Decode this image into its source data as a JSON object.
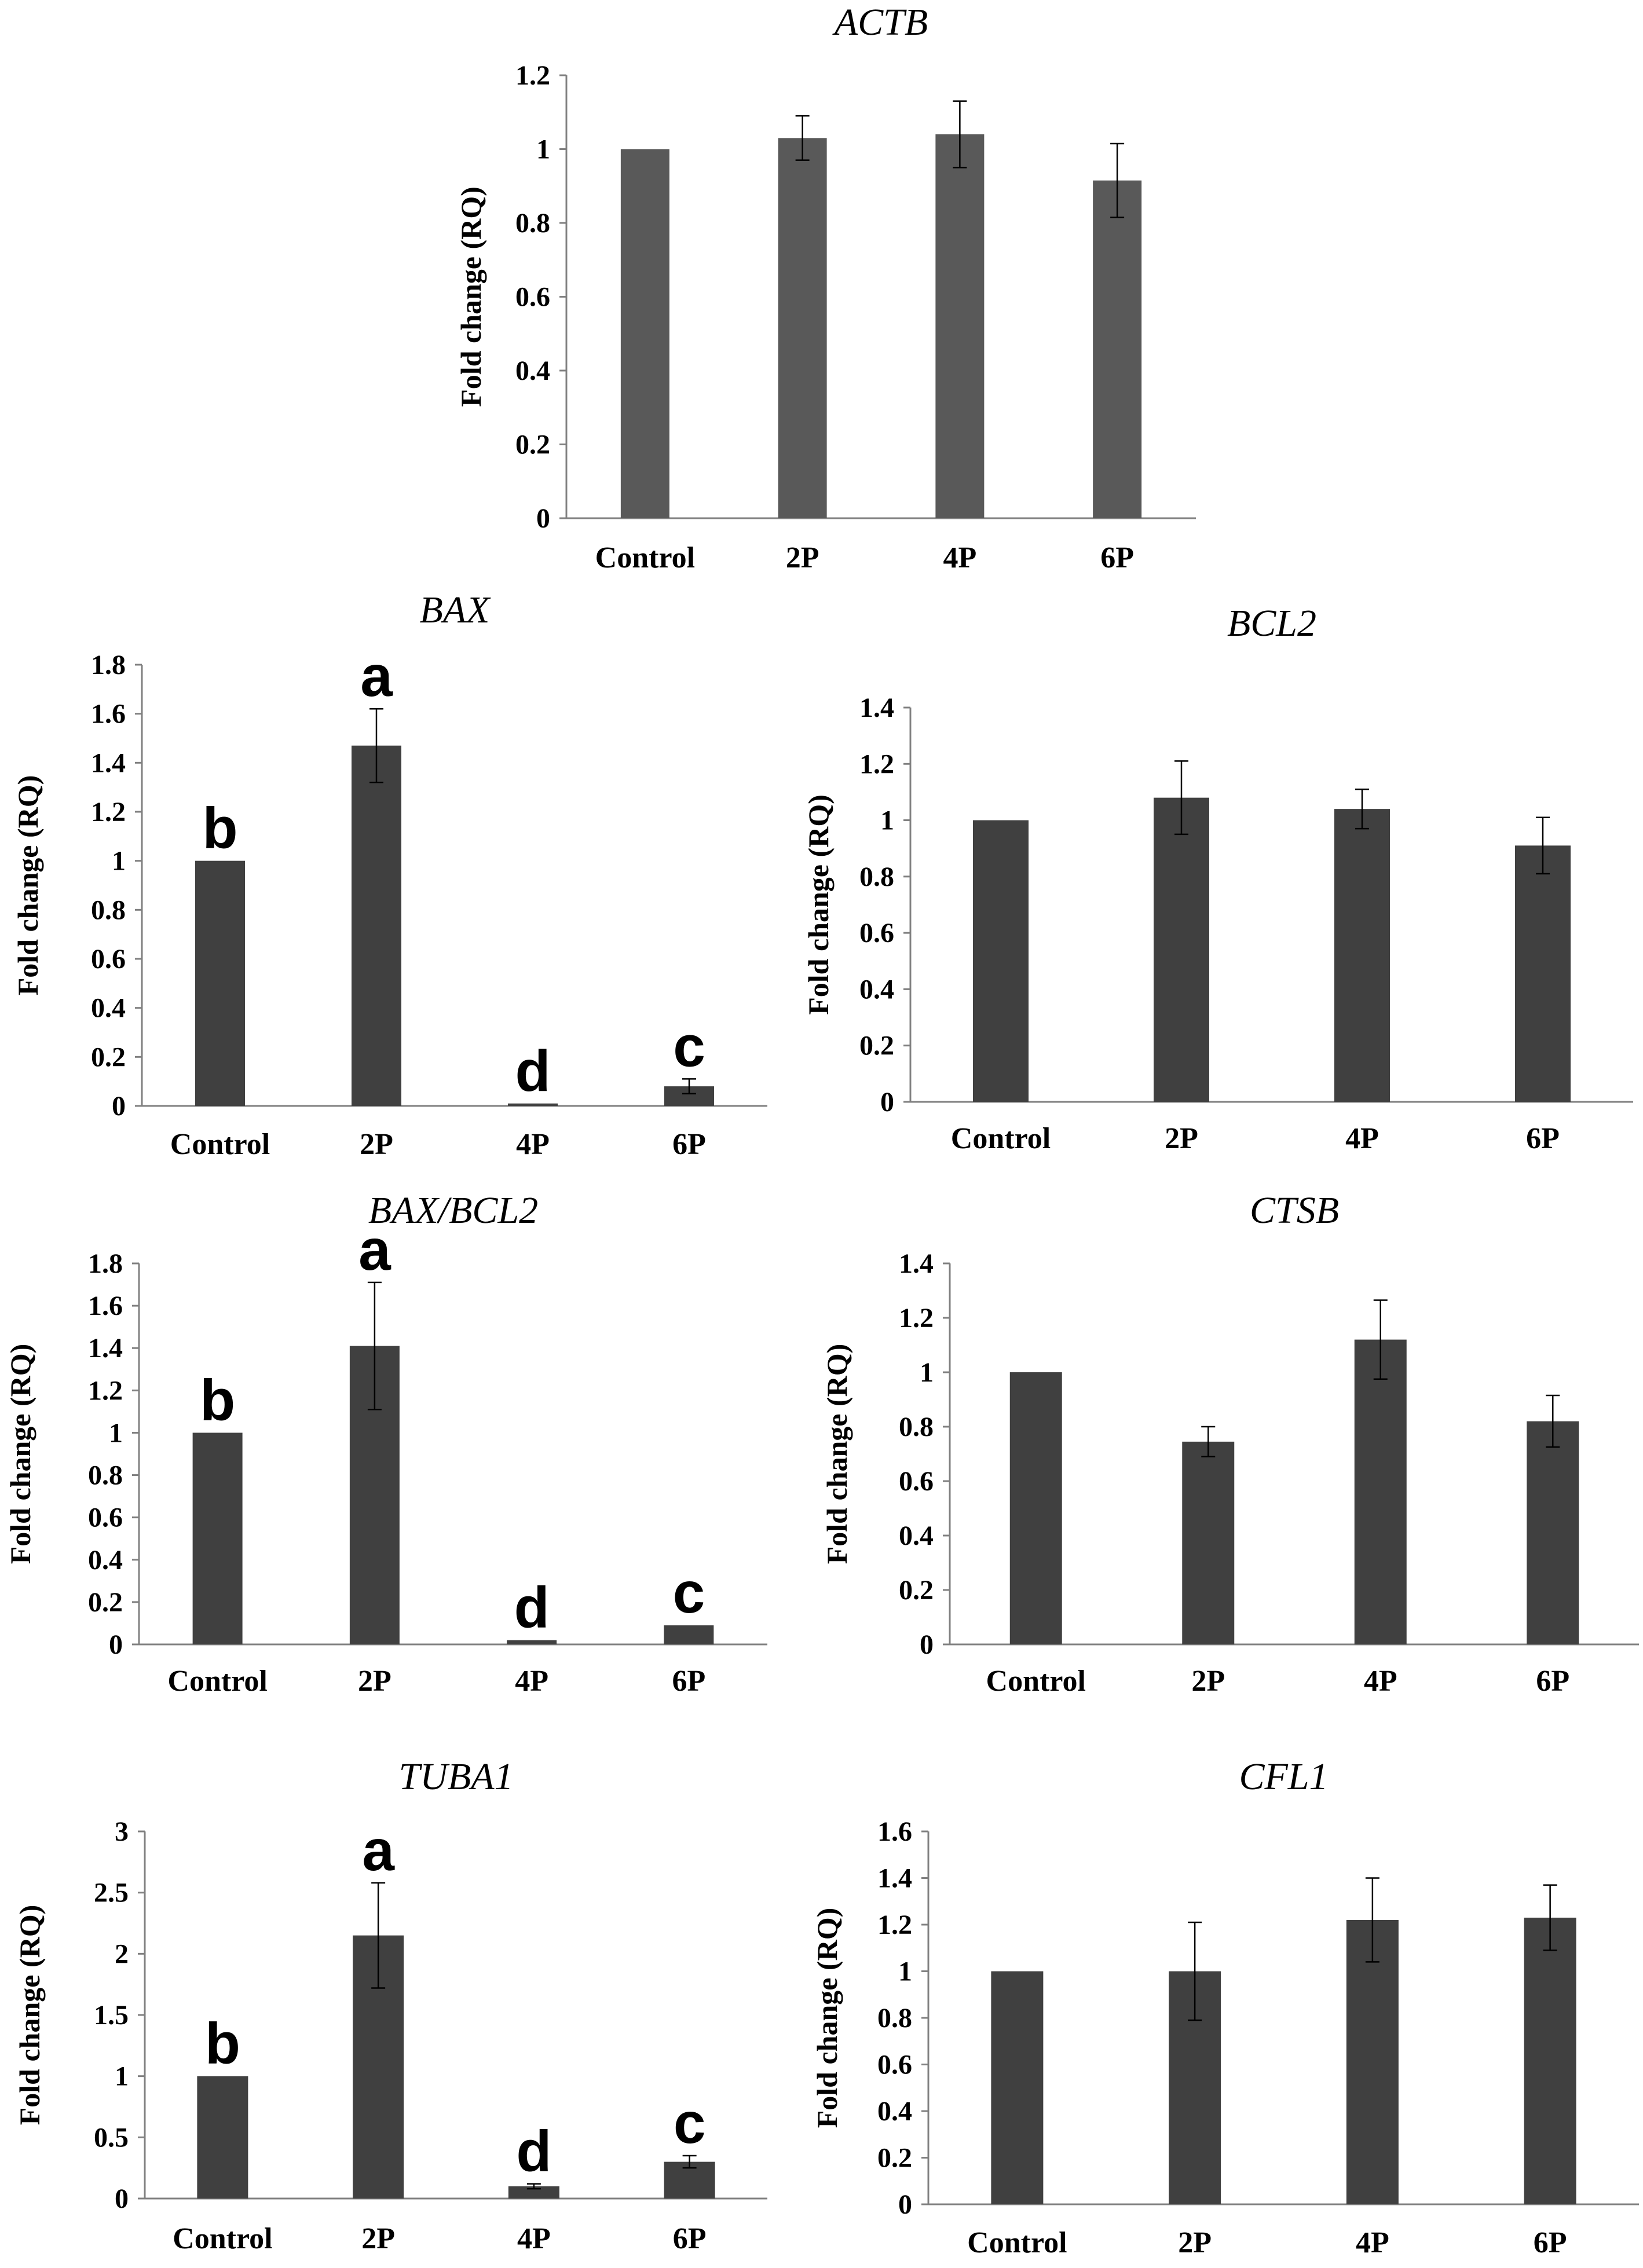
{
  "chart_data": [
    {
      "type": "bar",
      "title": "ACTB",
      "ylabel": "Fold change (RQ)",
      "xlabel": "",
      "categories": [
        "Control",
        "2P",
        "4P",
        "6P"
      ],
      "values": [
        1.0,
        1.03,
        1.04,
        0.915
      ],
      "errors": [
        0.0,
        0.06,
        0.09,
        0.1
      ],
      "ylim": [
        0,
        1.2
      ],
      "yticks": [
        "0",
        "0.2",
        "0.4",
        "0.6",
        "0.8",
        "1",
        "1.2"
      ],
      "bar_color": "#595959",
      "significance_letters": []
    },
    {
      "type": "bar",
      "title": "BAX",
      "ylabel": "Fold change (RQ)",
      "xlabel": "",
      "categories": [
        "Control",
        "2P",
        "4P",
        "6P"
      ],
      "values": [
        1.0,
        1.47,
        0.01,
        0.08
      ],
      "errors": [
        0.0,
        0.15,
        0.0,
        0.03
      ],
      "ylim": [
        0,
        1.8
      ],
      "yticks": [
        "0",
        "0.2",
        "0.4",
        "0.6",
        "0.8",
        "1",
        "1.2",
        "1.4",
        "1.6",
        "1.8"
      ],
      "bar_color": "#404040",
      "significance_letters": [
        "b",
        "a",
        "d",
        "c"
      ]
    },
    {
      "type": "bar",
      "title": "BCL2",
      "ylabel": "Fold change (RQ)",
      "xlabel": "",
      "categories": [
        "Control",
        "2P",
        "4P",
        "6P"
      ],
      "values": [
        1.0,
        1.08,
        1.04,
        0.91
      ],
      "errors": [
        0.0,
        0.13,
        0.07,
        0.1
      ],
      "ylim": [
        0,
        1.4
      ],
      "yticks": [
        "0",
        "0.2",
        "0.4",
        "0.6",
        "0.8",
        "1",
        "1.2",
        "1.4"
      ],
      "bar_color": "#404040",
      "significance_letters": []
    },
    {
      "type": "bar",
      "title": "BAX/BCL2",
      "ylabel": "Fold change (RQ)",
      "xlabel": "",
      "categories": [
        "Control",
        "2P",
        "4P",
        "6P"
      ],
      "values": [
        1.0,
        1.41,
        0.02,
        0.09
      ],
      "errors": [
        0.0,
        0.3,
        0.0,
        0.0
      ],
      "ylim": [
        0,
        1.8
      ],
      "yticks": [
        "0",
        "0.2",
        "0.4",
        "0.6",
        "0.8",
        "1",
        "1.2",
        "1.4",
        "1.6",
        "1.8"
      ],
      "bar_color": "#404040",
      "significance_letters": [
        "b",
        "a",
        "d",
        "c"
      ]
    },
    {
      "type": "bar",
      "title": "CTSB",
      "ylabel": "Fold change (RQ)",
      "xlabel": "",
      "categories": [
        "Control",
        "2P",
        "4P",
        "6P"
      ],
      "values": [
        1.0,
        0.745,
        1.12,
        0.82
      ],
      "errors": [
        0.0,
        0.055,
        0.145,
        0.095
      ],
      "ylim": [
        0,
        1.4
      ],
      "yticks": [
        "0",
        "0.2",
        "0.4",
        "0.6",
        "0.8",
        "1",
        "1.2",
        "1.4"
      ],
      "bar_color": "#404040",
      "significance_letters": []
    },
    {
      "type": "bar",
      "title": "TUBA1",
      "ylabel": "Fold change (RQ)",
      "xlabel": "",
      "categories": [
        "Control",
        "2P",
        "4P",
        "6P"
      ],
      "values": [
        1.0,
        2.15,
        0.1,
        0.3
      ],
      "errors": [
        0.0,
        0.43,
        0.02,
        0.05
      ],
      "ylim": [
        0,
        3
      ],
      "yticks": [
        "0",
        "0.5",
        "1",
        "1.5",
        "2",
        "2.5",
        "3"
      ],
      "bar_color": "#404040",
      "significance_letters": [
        "b",
        "a",
        "d",
        "c"
      ]
    },
    {
      "type": "bar",
      "title": "CFL1",
      "ylabel": "Fold change (RQ)",
      "xlabel": "",
      "categories": [
        "Control",
        "2P",
        "4P",
        "6P"
      ],
      "values": [
        1.0,
        1.0,
        1.22,
        1.23
      ],
      "errors": [
        0.0,
        0.21,
        0.18,
        0.14
      ],
      "ylim": [
        0,
        1.6
      ],
      "yticks": [
        "0",
        "0.2",
        "0.4",
        "0.6",
        "0.8",
        "1",
        "1.2",
        "1.4",
        "1.6"
      ],
      "bar_color": "#404040",
      "significance_letters": []
    }
  ]
}
